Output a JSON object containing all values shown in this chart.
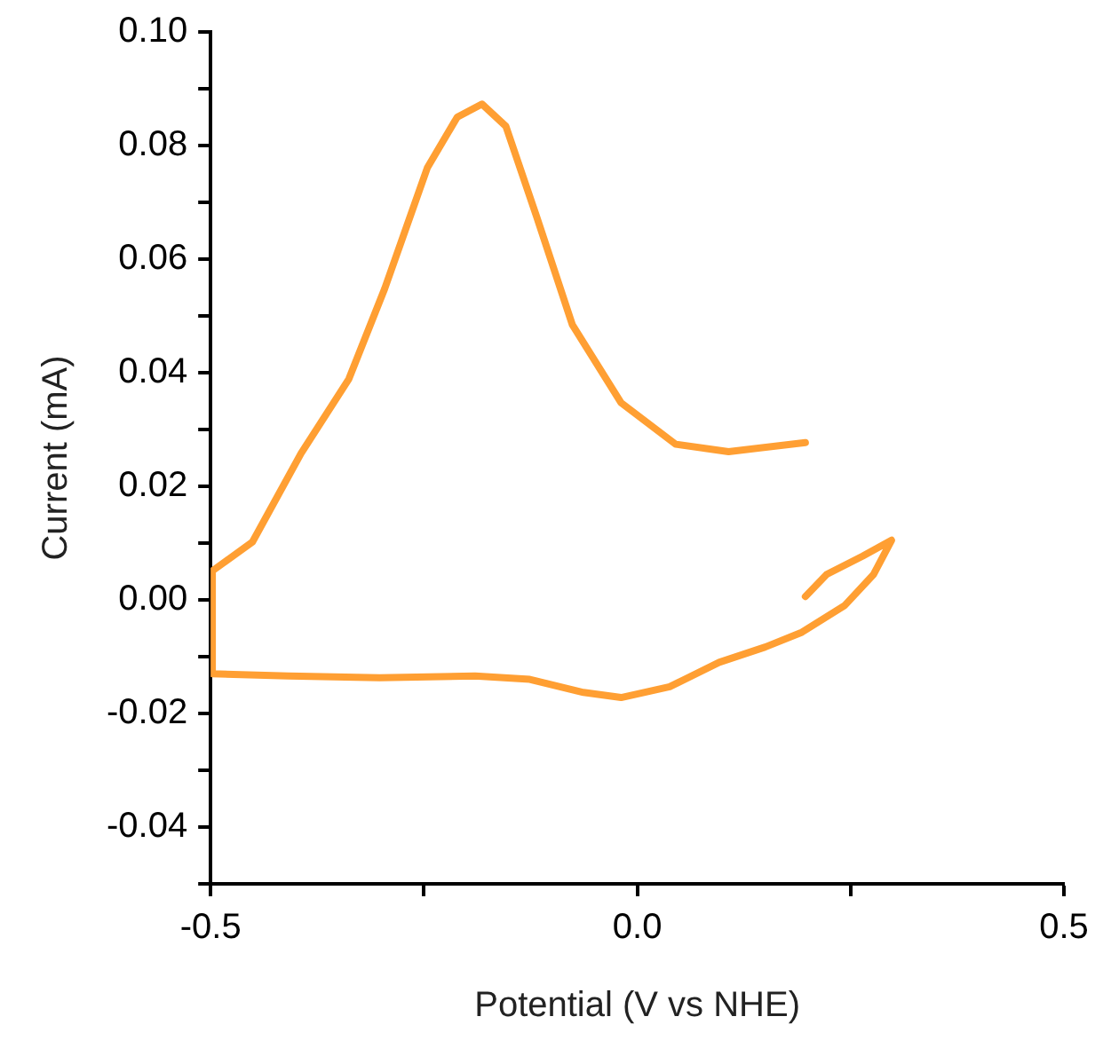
{
  "chart_data": {
    "type": "line",
    "xlabel": "Potential (V vs NHE)",
    "ylabel": "Current (mA)",
    "xlim": [
      -0.5,
      0.5
    ],
    "xticks": [
      -0.5,
      {
        "value": -0.25,
        "label": null
      },
      {
        "value": 0,
        "label": "0.0"
      },
      {
        "value": 0.25,
        "label": null
      },
      0.5
    ],
    "ylim": [
      -0.05,
      0.1
    ],
    "yticks": [
      {
        "value": -0.05,
        "label": null
      },
      -0.04,
      {
        "value": -0.03,
        "label": null
      },
      -0.02,
      {
        "value": -0.01,
        "label": null
      },
      {
        "value": 0,
        "label": "0.00"
      },
      {
        "value": 0.01,
        "label": null
      },
      0.02,
      {
        "value": 0.03,
        "label": null
      },
      0.04,
      {
        "value": 0.05,
        "label": null
      },
      0.06,
      {
        "value": 0.07,
        "label": null
      },
      0.08,
      {
        "value": 0.09,
        "label": null
      },
      {
        "value": 0.1,
        "label": "0.10"
      }
    ],
    "grid": false,
    "legend": false,
    "marker": "none",
    "line_style": "solid",
    "series": [
      {
        "color": "#ff9f33",
        "x": [
          0.197,
          0.222,
          0.264,
          0.298,
          0.277,
          0.243,
          0.193,
          0.15,
          0.096,
          0.038,
          -0.019,
          -0.063,
          -0.126,
          -0.19,
          -0.302,
          -0.409,
          -0.498,
          -0.498,
          -0.451,
          -0.394,
          -0.338,
          -0.296,
          -0.246,
          -0.211,
          -0.182,
          -0.154,
          -0.118,
          -0.076,
          -0.019,
          0.045,
          0.107,
          0.197
        ],
        "values": [
          0.0006,
          0.0045,
          0.0077,
          0.0105,
          0.0045,
          -0.001,
          -0.0057,
          -0.0083,
          -0.011,
          -0.0153,
          -0.0172,
          -0.0163,
          -0.014,
          -0.0134,
          -0.0137,
          -0.0134,
          -0.013,
          0.0051,
          0.0102,
          0.0258,
          0.0389,
          0.0548,
          0.0761,
          0.085,
          0.0873,
          0.0834,
          0.0675,
          0.0484,
          0.0347,
          0.0274,
          0.0261,
          0.0277
        ]
      }
    ]
  }
}
